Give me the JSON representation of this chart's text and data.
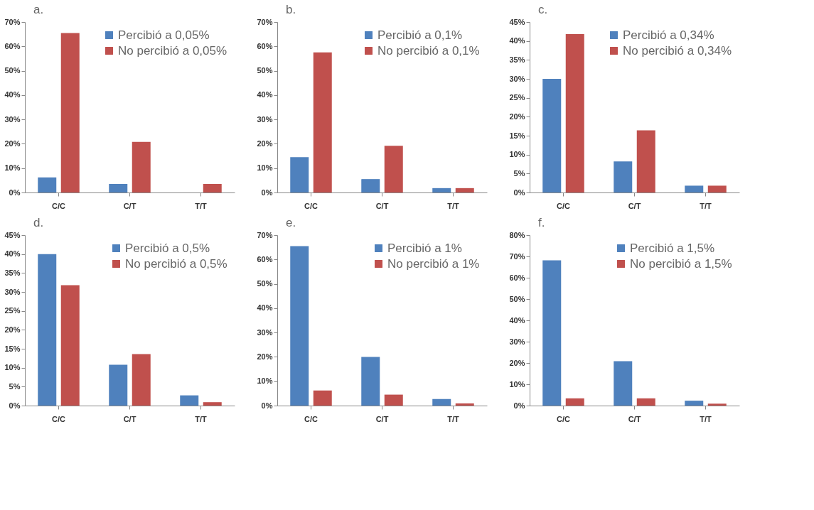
{
  "chart_data": [
    {
      "type": "bar",
      "title": "a.",
      "categories": [
        "C/C",
        "C/T",
        "T/T"
      ],
      "ylim": [
        0,
        70
      ],
      "yticks": [
        {
          "value": 0,
          "label": "0%"
        },
        {
          "value": 10,
          "label": "10%"
        },
        {
          "value": 20,
          "label": "20%"
        },
        {
          "value": 30,
          "label": "30%"
        },
        {
          "value": 40,
          "label": "40%"
        },
        {
          "value": 50,
          "label": "50%"
        },
        {
          "value": 60,
          "label": "60%"
        },
        {
          "value": 70,
          "label": "70%"
        }
      ],
      "legend": "top right",
      "grid": false,
      "series": [
        {
          "name": "Percibió a 0,05%",
          "color": "#4f81bd",
          "values": [
            6.2,
            3.5,
            0
          ]
        },
        {
          "name": "No percibió a 0,05%",
          "color": "#c0504d",
          "values": [
            65.5,
            20.8,
            3.5
          ]
        }
      ]
    },
    {
      "type": "bar",
      "title": "b.",
      "categories": [
        "C/C",
        "C/T",
        "T/T"
      ],
      "ylim": [
        0,
        70
      ],
      "yticks": [
        {
          "value": 0,
          "label": "0%"
        },
        {
          "value": 10,
          "label": "10%"
        },
        {
          "value": 20,
          "label": "20%"
        },
        {
          "value": 30,
          "label": "30%"
        },
        {
          "value": 40,
          "label": "40%"
        },
        {
          "value": 50,
          "label": "50%"
        },
        {
          "value": 60,
          "label": "60%"
        },
        {
          "value": 70,
          "label": "70%"
        }
      ],
      "legend": "top right",
      "grid": false,
      "series": [
        {
          "name": "Percibió a 0,1%",
          "color": "#4f81bd",
          "values": [
            14.5,
            5.5,
            1.8
          ]
        },
        {
          "name": "No percibió a 0,1%",
          "color": "#c0504d",
          "values": [
            57.5,
            19.2,
            1.8
          ]
        }
      ]
    },
    {
      "type": "bar",
      "title": "c.",
      "categories": [
        "C/C",
        "C/T",
        "T/T"
      ],
      "ylim": [
        0,
        45
      ],
      "yticks": [
        {
          "value": 0,
          "label": "0%"
        },
        {
          "value": 5,
          "label": "5%"
        },
        {
          "value": 10,
          "label": "10%"
        },
        {
          "value": 15,
          "label": "15%"
        },
        {
          "value": 20,
          "label": "20%"
        },
        {
          "value": 25,
          "label": "25%"
        },
        {
          "value": 30,
          "label": "30%"
        },
        {
          "value": 35,
          "label": "35%"
        },
        {
          "value": 40,
          "label": "40%"
        },
        {
          "value": 45,
          "label": "45%"
        }
      ],
      "legend": "top right",
      "grid": false,
      "series": [
        {
          "name": "Percibió a 0,34%",
          "color": "#4f81bd",
          "values": [
            30,
            8.2,
            1.8
          ]
        },
        {
          "name": "No percibió a 0,34%",
          "color": "#c0504d",
          "values": [
            41.8,
            16.4,
            1.8
          ]
        }
      ]
    },
    {
      "type": "bar",
      "title": "d.",
      "categories": [
        "C/C",
        "C/T",
        "T/T"
      ],
      "ylim": [
        0,
        45
      ],
      "yticks": [
        {
          "value": 0,
          "label": "0%"
        },
        {
          "value": 5,
          "label": "5%"
        },
        {
          "value": 10,
          "label": "10%"
        },
        {
          "value": 15,
          "label": "15%"
        },
        {
          "value": 20,
          "label": "20%"
        },
        {
          "value": 25,
          "label": "25%"
        },
        {
          "value": 30,
          "label": "30%"
        },
        {
          "value": 35,
          "label": "35%"
        },
        {
          "value": 40,
          "label": "40%"
        },
        {
          "value": 45,
          "label": "45%"
        }
      ],
      "legend": "top right",
      "grid": false,
      "series": [
        {
          "name": "Percibió a 0,5%",
          "color": "#4f81bd",
          "values": [
            40,
            10.8,
            2.7
          ]
        },
        {
          "name": "No percibió a 0,5%",
          "color": "#c0504d",
          "values": [
            31.8,
            13.6,
            0.9
          ]
        }
      ]
    },
    {
      "type": "bar",
      "title": "e.",
      "categories": [
        "C/C",
        "C/T",
        "T/T"
      ],
      "ylim": [
        0,
        70
      ],
      "yticks": [
        {
          "value": 0,
          "label": "0%"
        },
        {
          "value": 10,
          "label": "10%"
        },
        {
          "value": 20,
          "label": "20%"
        },
        {
          "value": 30,
          "label": "30%"
        },
        {
          "value": 40,
          "label": "40%"
        },
        {
          "value": 50,
          "label": "50%"
        },
        {
          "value": 60,
          "label": "60%"
        },
        {
          "value": 70,
          "label": "70%"
        }
      ],
      "legend": "top right",
      "grid": false,
      "series": [
        {
          "name": "Percibió a 1%",
          "color": "#4f81bd",
          "values": [
            65.5,
            20,
            2.7
          ]
        },
        {
          "name": "No percibió a 1%",
          "color": "#c0504d",
          "values": [
            6.2,
            4.5,
            0.9
          ]
        }
      ]
    },
    {
      "type": "bar",
      "title": "f.",
      "categories": [
        "C/C",
        "C/T",
        "T/T"
      ],
      "ylim": [
        0,
        80
      ],
      "yticks": [
        {
          "value": 0,
          "label": "0%"
        },
        {
          "value": 10,
          "label": "10%"
        },
        {
          "value": 20,
          "label": "20%"
        },
        {
          "value": 30,
          "label": "30%"
        },
        {
          "value": 40,
          "label": "40%"
        },
        {
          "value": 50,
          "label": "50%"
        },
        {
          "value": 60,
          "label": "60%"
        },
        {
          "value": 70,
          "label": "70%"
        },
        {
          "value": 80,
          "label": "80%"
        }
      ],
      "legend": "top right",
      "grid": false,
      "series": [
        {
          "name": "Percibió a 1,5%",
          "color": "#4f81bd",
          "values": [
            68.2,
            20.8,
            2.3
          ]
        },
        {
          "name": "No percibió a 1,5%",
          "color": "#c0504d",
          "values": [
            3.4,
            3.4,
            0.9
          ]
        }
      ]
    }
  ]
}
